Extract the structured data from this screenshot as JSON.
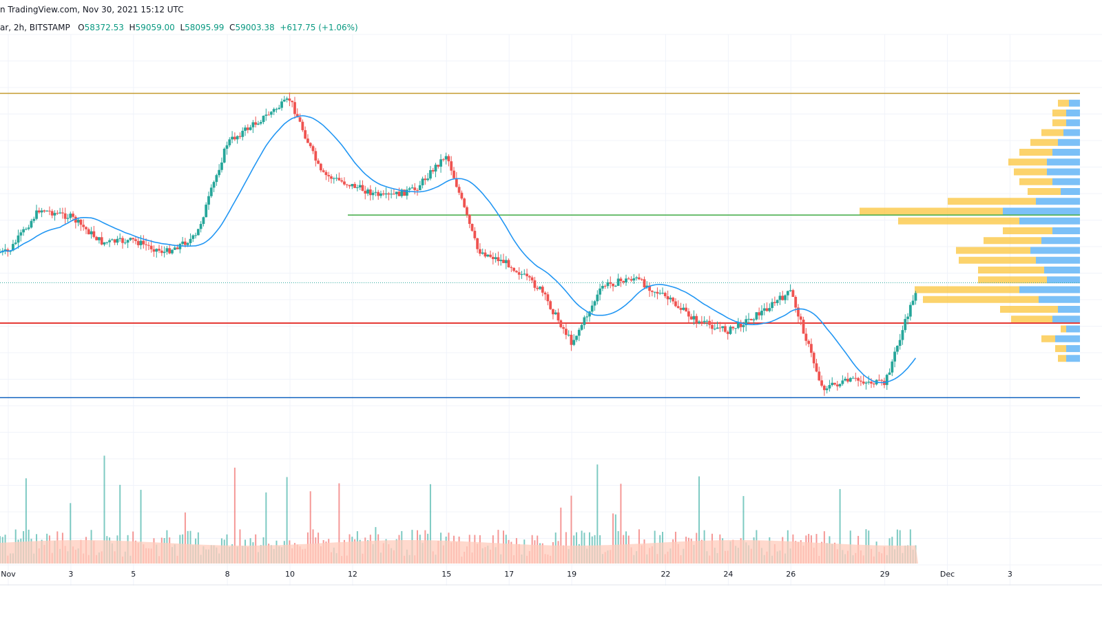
{
  "header": {
    "line1": "n TradingView.com, Nov 30, 2021 15:12 UTC",
    "symbol_prefix": "ar, 2h, BITSTAMP",
    "o_label": "O",
    "o_value": "58372.53",
    "h_label": "H",
    "h_value": "59059.00",
    "l_label": "L",
    "l_value": "58095.99",
    "c_label": "C",
    "c_value": "59003.38",
    "change": "+617.75 (+1.06%)"
  },
  "colors": {
    "up": "#26a69a",
    "down": "#ef5350",
    "ma": "#2196f3",
    "resistance": "#c49a2c",
    "mid_support": "#4caf50",
    "current_level": "#e53935",
    "support": "#1565c0",
    "vp_up": "#64b5f6",
    "vp_down": "#fbc02d",
    "volume_ma_fill": "#ffccbc"
  },
  "chart_data": {
    "type": "candlestick",
    "timeframe": "2h",
    "exchange": "BITSTAMP",
    "x_ticks": [
      "Nov",
      "3",
      "5",
      "8",
      "10",
      "12",
      "15",
      "17",
      "19",
      "22",
      "24",
      "26",
      "29",
      "Dec",
      "3"
    ],
    "y_range": [
      52000,
      72000
    ],
    "last_close": 59003.38,
    "price_path": [
      {
        "date": "2021-11-01",
        "price": 60900
      },
      {
        "date": "2021-11-02",
        "price": 63100
      },
      {
        "date": "2021-11-03",
        "price": 62700
      },
      {
        "date": "2021-11-04",
        "price": 61400
      },
      {
        "date": "2021-11-05",
        "price": 61500
      },
      {
        "date": "2021-11-06",
        "price": 60900
      },
      {
        "date": "2021-11-07",
        "price": 61700
      },
      {
        "date": "2021-11-08",
        "price": 66500
      },
      {
        "date": "2021-11-09",
        "price": 67600
      },
      {
        "date": "2021-11-10",
        "price": 68700
      },
      {
        "date": "2021-11-11",
        "price": 64900
      },
      {
        "date": "2021-11-12",
        "price": 64300
      },
      {
        "date": "2021-11-13",
        "price": 63700
      },
      {
        "date": "2021-11-14",
        "price": 64100
      },
      {
        "date": "2021-11-15",
        "price": 65900
      },
      {
        "date": "2021-11-16",
        "price": 61000
      },
      {
        "date": "2021-11-17",
        "price": 60300
      },
      {
        "date": "2021-11-18",
        "price": 59000
      },
      {
        "date": "2021-11-19",
        "price": 56300
      },
      {
        "date": "2021-11-20",
        "price": 59200
      },
      {
        "date": "2021-11-21",
        "price": 59600
      },
      {
        "date": "2021-11-22",
        "price": 58600
      },
      {
        "date": "2021-11-23",
        "price": 57400
      },
      {
        "date": "2021-11-24",
        "price": 56900
      },
      {
        "date": "2021-11-25",
        "price": 57800
      },
      {
        "date": "2021-11-26",
        "price": 58900
      },
      {
        "date": "2021-11-27",
        "price": 54000
      },
      {
        "date": "2021-11-28",
        "price": 54400
      },
      {
        "date": "2021-11-29",
        "price": 54200
      },
      {
        "date": "2021-11-30",
        "price": 59003
      }
    ],
    "levels": [
      {
        "color_key": "resistance",
        "price": 69000
      },
      {
        "color_key": "mid_support",
        "price": 62800
      },
      {
        "color_key": "current_level",
        "price": 57300
      },
      {
        "color_key": "support",
        "price": 53500
      }
    ],
    "volume_profile": [
      {
        "price": 68500,
        "up": 0.04,
        "down": 0.04
      },
      {
        "price": 68000,
        "up": 0.05,
        "down": 0.05
      },
      {
        "price": 67500,
        "up": 0.05,
        "down": 0.05
      },
      {
        "price": 67000,
        "up": 0.06,
        "down": 0.08
      },
      {
        "price": 66500,
        "up": 0.08,
        "down": 0.1
      },
      {
        "price": 66000,
        "up": 0.1,
        "down": 0.12
      },
      {
        "price": 65500,
        "up": 0.12,
        "down": 0.14
      },
      {
        "price": 65000,
        "up": 0.12,
        "down": 0.12
      },
      {
        "price": 64500,
        "up": 0.1,
        "down": 0.12
      },
      {
        "price": 64000,
        "up": 0.07,
        "down": 0.12
      },
      {
        "price": 63500,
        "up": 0.16,
        "down": 0.32
      },
      {
        "price": 63000,
        "up": 0.28,
        "down": 0.52
      },
      {
        "price": 62500,
        "up": 0.22,
        "down": 0.44
      },
      {
        "price": 62000,
        "up": 0.1,
        "down": 0.18
      },
      {
        "price": 61500,
        "up": 0.14,
        "down": 0.21
      },
      {
        "price": 61000,
        "up": 0.18,
        "down": 0.27
      },
      {
        "price": 60500,
        "up": 0.16,
        "down": 0.28
      },
      {
        "price": 60000,
        "up": 0.13,
        "down": 0.24
      },
      {
        "price": 59500,
        "up": 0.12,
        "down": 0.25
      },
      {
        "price": 59000,
        "up": 0.22,
        "down": 0.38
      },
      {
        "price": 58500,
        "up": 0.15,
        "down": 0.42
      },
      {
        "price": 58000,
        "up": 0.08,
        "down": 0.21
      },
      {
        "price": 57500,
        "up": 0.1,
        "down": 0.15
      },
      {
        "price": 57000,
        "up": 0.05,
        "down": 0.02
      },
      {
        "price": 56500,
        "up": 0.09,
        "down": 0.05
      },
      {
        "price": 56000,
        "up": 0.05,
        "down": 0.04
      },
      {
        "price": 55500,
        "up": 0.05,
        "down": 0.03
      }
    ]
  }
}
